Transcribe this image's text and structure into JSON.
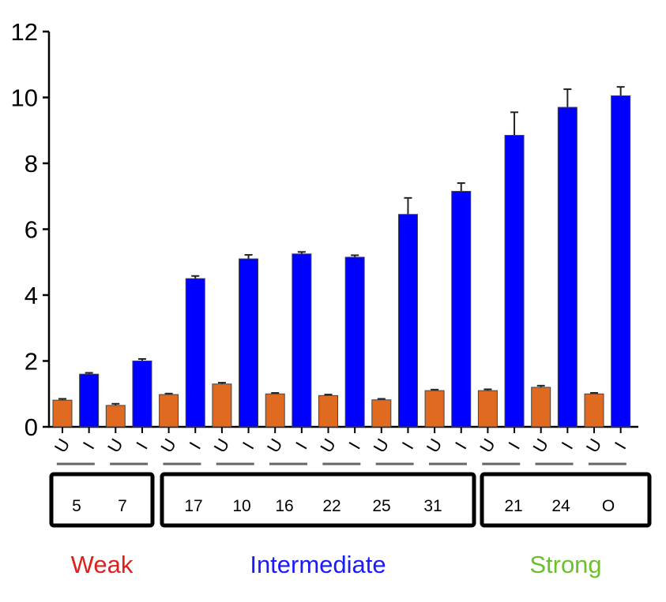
{
  "chart_data": {
    "type": "bar",
    "title": "",
    "xlabel": "",
    "ylabel": "",
    "ylim": [
      0,
      12
    ],
    "yticks": [
      "0",
      "2",
      "4",
      "6",
      "8",
      "10",
      "12"
    ],
    "grid": false,
    "condition_labels": [
      "U",
      "I"
    ],
    "groups": [
      {
        "id": "5",
        "category": "Weak",
        "U": 0.81,
        "U_err": 0.04,
        "I": 1.6,
        "I_err": 0.04
      },
      {
        "id": "7",
        "category": "Weak",
        "U": 0.65,
        "U_err": 0.05,
        "I": 2.0,
        "I_err": 0.06
      },
      {
        "id": "17",
        "category": "Intermediate",
        "U": 0.98,
        "U_err": 0.03,
        "I": 4.5,
        "I_err": 0.08
      },
      {
        "id": "10",
        "category": "Intermediate",
        "U": 1.3,
        "U_err": 0.04,
        "I": 5.1,
        "I_err": 0.12
      },
      {
        "id": "16",
        "category": "Intermediate",
        "U": 1.0,
        "U_err": 0.03,
        "I": 5.25,
        "I_err": 0.06
      },
      {
        "id": "22",
        "category": "Intermediate",
        "U": 0.95,
        "U_err": 0.03,
        "I": 5.15,
        "I_err": 0.06
      },
      {
        "id": "25",
        "category": "Intermediate",
        "U": 0.82,
        "U_err": 0.03,
        "I": 6.45,
        "I_err": 0.5
      },
      {
        "id": "31",
        "category": "Intermediate",
        "U": 1.1,
        "U_err": 0.03,
        "I": 7.15,
        "I_err": 0.25
      },
      {
        "id": "21",
        "category": "Strong",
        "U": 1.1,
        "U_err": 0.04,
        "I": 8.85,
        "I_err": 0.7
      },
      {
        "id": "24",
        "category": "Strong",
        "U": 1.2,
        "U_err": 0.05,
        "I": 9.7,
        "I_err": 0.55
      },
      {
        "id": "O",
        "category": "Strong",
        "U": 1.0,
        "U_err": 0.03,
        "I": 10.05,
        "I_err": 0.27
      }
    ],
    "categories": [
      {
        "label": "Weak",
        "color": "#e0201b"
      },
      {
        "label": "Intermediate",
        "color": "#1a1aff"
      },
      {
        "label": "Strong",
        "color": "#6cc02a"
      }
    ],
    "colors": {
      "U": "#e06a1f",
      "I": "#0000ff"
    }
  }
}
